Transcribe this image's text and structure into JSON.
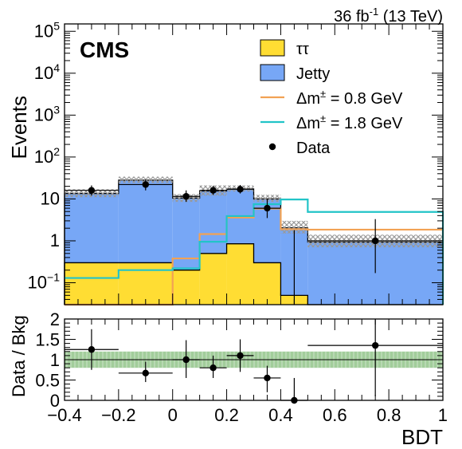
{
  "header": {
    "lumi_value": "36 fb",
    "lumi_exp": "-1",
    "lumi_energy": " (13 TeV)",
    "experiment": "CMS"
  },
  "colors": {
    "tautau": "#ffdd33",
    "jetty": "#77a7f6",
    "dm08": "#f2a254",
    "dm18": "#22c4c8",
    "unc_hatch": "#999999",
    "ratio_band": "#92c48a"
  },
  "legend": [
    {
      "key": "tautau",
      "label": "ττ",
      "style": "fill"
    },
    {
      "key": "jetty",
      "label": "Jetty",
      "style": "fill"
    },
    {
      "key": "dm08",
      "label_main": "Δm",
      "label_sup": "±",
      "label_rest": " = 0.8 GeV",
      "style": "line"
    },
    {
      "key": "dm18",
      "label_main": "Δm",
      "label_sup": "±",
      "label_rest": " = 1.8 GeV",
      "style": "line"
    },
    {
      "key": "data",
      "label": "Data",
      "style": "marker"
    }
  ],
  "chart_data": [
    {
      "type": "bar",
      "stacked": true,
      "ylabel": "Events",
      "yscale": "log",
      "ylim": [
        0.03,
        150000
      ],
      "xlim": [
        -0.4,
        1.0
      ],
      "bin_edges": [
        -0.4,
        -0.2,
        0.0,
        0.1,
        0.2,
        0.3,
        0.4,
        0.5,
        1.0
      ],
      "y_ticks": [
        {
          "value": 0.1,
          "base": "10",
          "exp": "−1"
        },
        {
          "value": 1,
          "text": "1"
        },
        {
          "value": 10,
          "text": "10"
        },
        {
          "value": 100,
          "base": "10",
          "exp": "2"
        },
        {
          "value": 1000,
          "base": "10",
          "exp": "3"
        },
        {
          "value": 10000,
          "base": "10",
          "exp": "4"
        },
        {
          "value": 100000,
          "base": "10",
          "exp": "5"
        }
      ],
      "series": [
        {
          "name": "ττ",
          "key": "tautau",
          "values": [
            0.3,
            0.3,
            0.2,
            0.5,
            0.85,
            0.3,
            0.05,
            0.03
          ]
        },
        {
          "name": "Jetty",
          "key": "jetty",
          "values": [
            13.2,
            27.7,
            10.3,
            15.0,
            16.5,
            9.7,
            2.0,
            0.9
          ]
        }
      ],
      "total_background": [
        13.5,
        28.0,
        10.5,
        15.5,
        17.35,
        10.0,
        2.05,
        0.93
      ],
      "uncertainty_band": {
        "low": [
          11.0,
          24.0,
          8.5,
          12.0,
          15.0,
          8.5,
          1.5,
          0.7
        ],
        "high": [
          17.0,
          34.0,
          13.0,
          21.0,
          21.0,
          12.5,
          3.0,
          1.4
        ]
      },
      "signals": [
        {
          "name": "Δm± = 0.8 GeV",
          "key": "dm08",
          "values": [
            0.03,
            0.03,
            0.38,
            1.45,
            3.6,
            5.9,
            1.9,
            1.85
          ]
        },
        {
          "name": "Δm± = 1.8 GeV",
          "key": "dm18",
          "values": [
            0.13,
            0.2,
            0.22,
            0.95,
            3.9,
            7.5,
            9.7,
            4.9
          ]
        }
      ],
      "data": {
        "x": [
          -0.3,
          -0.1,
          0.05,
          0.15,
          0.25,
          0.35,
          0.45,
          0.75
        ],
        "xerr": [
          0.1,
          0.1,
          0.05,
          0.05,
          0.05,
          0.05,
          0.05,
          0.25
        ],
        "y": [
          16,
          22,
          11.5,
          16,
          17,
          6,
          0,
          1
        ],
        "ylow": [
          12,
          16,
          8.5,
          12.5,
          13.5,
          3.5,
          0,
          0.17
        ],
        "yhigh": [
          21,
          29,
          16,
          20.5,
          21.5,
          10,
          1.8,
          3.3
        ]
      }
    },
    {
      "type": "scatter",
      "xlabel": "BDT",
      "ylabel": "Data / Bkg",
      "xlim": [
        -0.4,
        1.0
      ],
      "ylim": [
        0,
        2
      ],
      "x_ticks": [
        "−0.4",
        "−0.2",
        "0",
        "0.2",
        "0.4",
        "0.6",
        "0.8",
        "1"
      ],
      "x_tick_values": [
        -0.4,
        -0.2,
        0.0,
        0.2,
        0.4,
        0.6,
        0.8,
        1.0
      ],
      "y_ticks": [
        "0",
        "0.5",
        "1",
        "1.5",
        "2"
      ],
      "y_tick_values": [
        0,
        0.5,
        1,
        1.5,
        2
      ],
      "reference_line": 1,
      "band": [
        0.8,
        1.2
      ],
      "x": [
        -0.3,
        -0.1,
        0.05,
        0.15,
        0.25,
        0.35,
        0.45,
        0.75
      ],
      "xerr": [
        0.1,
        0.1,
        0.05,
        0.05,
        0.05,
        0.05,
        0.05,
        0.25
      ],
      "y": [
        1.25,
        0.67,
        1.0,
        0.8,
        1.1,
        0.55,
        0.0,
        1.35
      ],
      "ylow": [
        0.75,
        0.45,
        0.55,
        0.55,
        0.7,
        0.2,
        0.0,
        0.1
      ],
      "yhigh": [
        1.75,
        0.95,
        1.48,
        1.1,
        1.5,
        0.85,
        0.55,
        2.0
      ]
    }
  ]
}
